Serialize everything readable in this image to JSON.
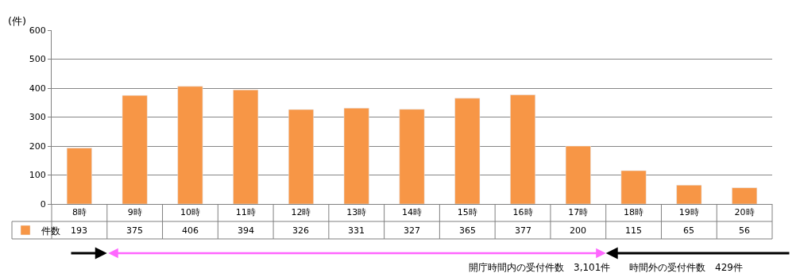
{
  "chart_data": {
    "type": "bar",
    "ylabel": "(件)",
    "categories": [
      "8時",
      "9時",
      "10時",
      "11時",
      "12時",
      "13時",
      "14時",
      "15時",
      "16時",
      "17時",
      "18時",
      "19時",
      "20時"
    ],
    "series": [
      {
        "name": "件数",
        "color": "#f79646",
        "values": [
          193,
          375,
          406,
          394,
          326,
          331,
          327,
          365,
          377,
          200,
          115,
          65,
          56
        ]
      }
    ],
    "ylim": [
      0,
      600
    ],
    "yticks": [
      0,
      100,
      200,
      300,
      400,
      500,
      600
    ],
    "grid": "y",
    "legend": "bottom left",
    "data_labels": true,
    "annotations": [
      "開庁時間内の受付件数　3,101件",
      "時間外の受付件数　429件"
    ]
  }
}
